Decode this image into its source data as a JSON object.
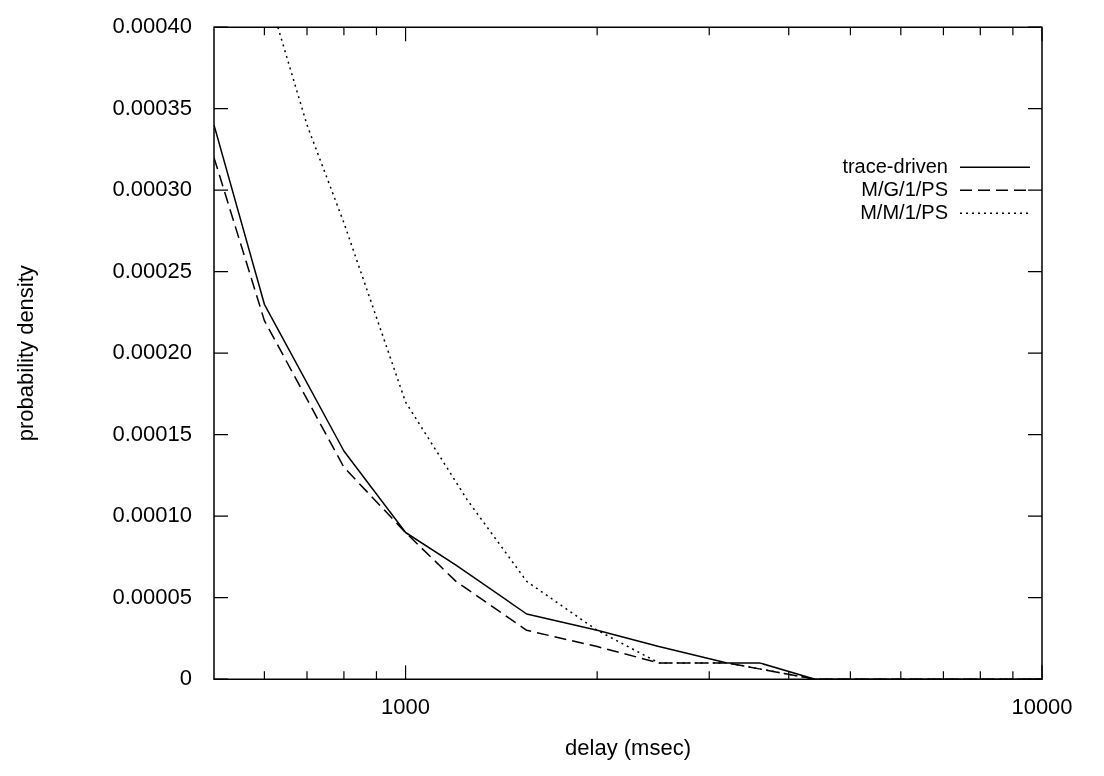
{
  "chart_data": {
    "type": "line",
    "xlabel": "delay (msec)",
    "ylabel": "probability density",
    "log": "x",
    "xlim": [
      500,
      10000
    ],
    "ylim": [
      0,
      0.0004
    ],
    "xticks": [
      {
        "value": 600,
        "label": null
      },
      {
        "value": 700,
        "label": null
      },
      {
        "value": 800,
        "label": null
      },
      {
        "value": 900,
        "label": null
      },
      1000,
      {
        "value": 2000,
        "label": null
      },
      {
        "value": 3000,
        "label": null
      },
      {
        "value": 4000,
        "label": null
      },
      {
        "value": 5000,
        "label": null
      },
      {
        "value": 6000,
        "label": null
      },
      {
        "value": 7000,
        "label": null
      },
      {
        "value": 8000,
        "label": null
      },
      {
        "value": 9000,
        "label": null
      },
      10000
    ],
    "yticks": [
      0,
      {
        "value": 5e-05,
        "label": "0.00005"
      },
      {
        "value": 0.0001,
        "label": "0.00010"
      },
      0.00015,
      {
        "value": 0.0002,
        "label": "0.00020"
      },
      0.00025,
      {
        "value": 0.0003,
        "label": "0.00030"
      },
      0.00035,
      {
        "value": 0.0004,
        "label": "0.00040"
      }
    ],
    "grid": false,
    "legend": "top right",
    "marker": "none",
    "series": [
      {
        "name": "trace-driven",
        "color": "#000000",
        "line_style": "solid",
        "x": [
          500,
          600,
          800,
          1000,
          1200,
          1550,
          2000,
          2500,
          3200,
          3600,
          4400,
          5100,
          6000,
          8000,
          10000
        ],
        "values": [
          0.00034,
          0.00023,
          0.00014,
          9e-05,
          7e-05,
          4e-05,
          3e-05,
          2e-05,
          1e-05,
          1e-05,
          0,
          0,
          0,
          0,
          0
        ]
      },
      {
        "name": "M/G/1/PS",
        "color": "#000000",
        "line_style": "dashed",
        "x": [
          500,
          600,
          800,
          1000,
          1200,
          1550,
          2000,
          2500,
          3200,
          4400,
          6000,
          10000
        ],
        "values": [
          0.00032,
          0.00022,
          0.00013,
          9e-05,
          6e-05,
          3e-05,
          2e-05,
          1e-05,
          1e-05,
          0,
          0,
          0
        ]
      },
      {
        "name": "M/M/1/PS",
        "color": "#000000",
        "line_style": "dotted",
        "x": [
          630,
          700,
          800,
          1000,
          1250,
          1550,
          2000,
          2500,
          3200,
          4400,
          6000,
          10000
        ],
        "values": [
          0.0004,
          0.00034,
          0.00028,
          0.00017,
          0.00011,
          6e-05,
          3e-05,
          1e-05,
          1e-05,
          0,
          0,
          0
        ]
      }
    ]
  }
}
